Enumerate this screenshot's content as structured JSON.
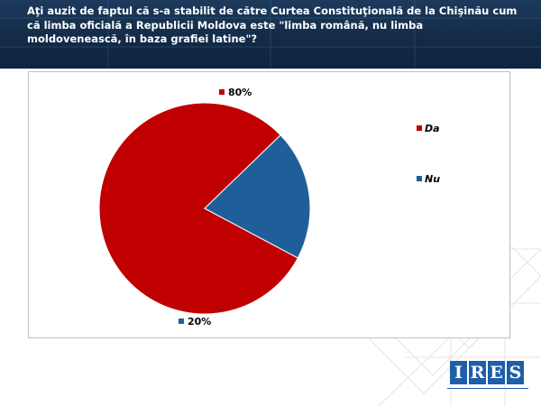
{
  "header": {
    "title": "Aţi auzit de faptul că s-a stabilit de către Curtea Constituţională  de la Chişinău cum că limba oficială a Republicii Moldova este \"limba română, nu limba  moldovenească, în baza grafiei latine\"?"
  },
  "chart_data": {
    "type": "pie",
    "categories": [
      "Da",
      "Nu"
    ],
    "values": [
      80,
      20
    ],
    "data_labels": [
      "80%",
      "20%"
    ],
    "colors": [
      "#c00000",
      "#1f5f99"
    ],
    "legend_position": "right"
  },
  "logo": {
    "letters": [
      "I",
      "R",
      "E",
      "S"
    ],
    "brand_color": "#1f5ea8"
  }
}
